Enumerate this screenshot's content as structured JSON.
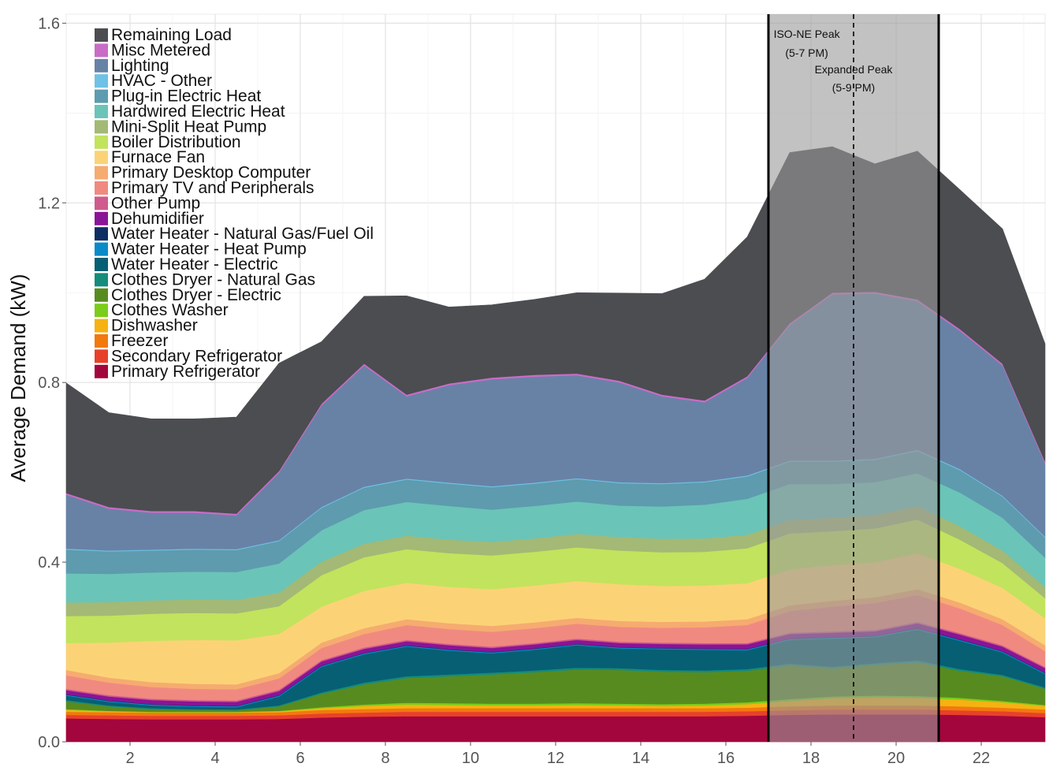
{
  "chart_data": {
    "type": "area",
    "stacked": true,
    "title": "",
    "xlabel": "",
    "ylabel": "Average Demand (kW)",
    "xlim": [
      0.5,
      23.5
    ],
    "ylim": [
      0,
      1.62
    ],
    "x_ticks": [
      2,
      4,
      6,
      8,
      10,
      12,
      14,
      16,
      18,
      20,
      22
    ],
    "x_tick_labels": [
      "2",
      "4",
      "6",
      "8",
      "10",
      "12",
      "14",
      "16",
      "18",
      "20",
      "22"
    ],
    "y_ticks": [
      0.0,
      0.4,
      0.8,
      1.2,
      1.6
    ],
    "y_tick_labels": [
      "0.0",
      "0.4",
      "0.8",
      "1.2",
      "1.6"
    ],
    "legend_position": "top-left",
    "x": [
      0.5,
      1.5,
      2.5,
      3.5,
      4.5,
      5.5,
      6.5,
      7.5,
      8.5,
      9.5,
      10.5,
      11.5,
      12.5,
      13.5,
      14.5,
      15.5,
      16.5,
      17.5,
      18.5,
      19.5,
      20.5,
      21.5,
      22.5,
      23.5
    ],
    "series": [
      {
        "name": "Primary Refrigerator",
        "color": "#a3063d",
        "values": [
          0.052,
          0.051,
          0.05,
          0.05,
          0.05,
          0.051,
          0.054,
          0.056,
          0.057,
          0.057,
          0.057,
          0.057,
          0.057,
          0.057,
          0.057,
          0.057,
          0.058,
          0.06,
          0.061,
          0.061,
          0.061,
          0.06,
          0.058,
          0.055
        ]
      },
      {
        "name": "Secondary Refrigerator",
        "color": "#e8412a",
        "values": [
          0.008,
          0.008,
          0.008,
          0.008,
          0.008,
          0.008,
          0.009,
          0.009,
          0.01,
          0.01,
          0.01,
          0.01,
          0.01,
          0.01,
          0.01,
          0.01,
          0.01,
          0.01,
          0.011,
          0.011,
          0.011,
          0.01,
          0.01,
          0.009
        ]
      },
      {
        "name": "Freezer",
        "color": "#f2790e",
        "values": [
          0.007,
          0.007,
          0.007,
          0.007,
          0.007,
          0.007,
          0.008,
          0.008,
          0.008,
          0.008,
          0.008,
          0.008,
          0.008,
          0.008,
          0.008,
          0.008,
          0.008,
          0.009,
          0.009,
          0.009,
          0.009,
          0.009,
          0.008,
          0.008
        ]
      },
      {
        "name": "Dishwasher",
        "color": "#f6b212",
        "values": [
          0.004,
          0.002,
          0.001,
          0.001,
          0.001,
          0.002,
          0.004,
          0.007,
          0.008,
          0.007,
          0.006,
          0.006,
          0.007,
          0.006,
          0.005,
          0.006,
          0.008,
          0.012,
          0.016,
          0.018,
          0.017,
          0.015,
          0.012,
          0.008
        ]
      },
      {
        "name": "Clothes Washer",
        "color": "#7ccd1a",
        "values": [
          0.002,
          0.001,
          0.001,
          0.001,
          0.001,
          0.001,
          0.002,
          0.003,
          0.004,
          0.004,
          0.004,
          0.004,
          0.004,
          0.004,
          0.004,
          0.004,
          0.004,
          0.004,
          0.004,
          0.004,
          0.004,
          0.004,
          0.003,
          0.002
        ]
      },
      {
        "name": "Clothes Dryer - Electric",
        "color": "#588b1f",
        "values": [
          0.017,
          0.01,
          0.006,
          0.004,
          0.003,
          0.01,
          0.03,
          0.045,
          0.055,
          0.06,
          0.065,
          0.07,
          0.075,
          0.075,
          0.072,
          0.07,
          0.07,
          0.075,
          0.062,
          0.068,
          0.075,
          0.06,
          0.055,
          0.036
        ]
      },
      {
        "name": "Clothes Dryer - Natural Gas",
        "color": "#158c7c",
        "values": [
          0.003,
          0.002,
          0.002,
          0.002,
          0.002,
          0.002,
          0.003,
          0.004,
          0.004,
          0.004,
          0.004,
          0.004,
          0.004,
          0.004,
          0.004,
          0.004,
          0.004,
          0.004,
          0.004,
          0.004,
          0.004,
          0.004,
          0.003,
          0.003
        ]
      },
      {
        "name": "Water Heater - Electric",
        "color": "#075f74",
        "values": [
          0.01,
          0.008,
          0.006,
          0.005,
          0.005,
          0.02,
          0.057,
          0.063,
          0.066,
          0.053,
          0.043,
          0.046,
          0.05,
          0.044,
          0.046,
          0.046,
          0.042,
          0.053,
          0.063,
          0.058,
          0.069,
          0.063,
          0.05,
          0.03
        ]
      },
      {
        "name": "Water Heater - Heat Pump",
        "color": "#0b8ac9",
        "values": [
          0.002,
          0.002,
          0.002,
          0.002,
          0.002,
          0.002,
          0.002,
          0.002,
          0.002,
          0.002,
          0.002,
          0.002,
          0.002,
          0.002,
          0.002,
          0.002,
          0.002,
          0.002,
          0.002,
          0.002,
          0.002,
          0.002,
          0.002,
          0.002
        ]
      },
      {
        "name": "Water Heater - Natural Gas/Fuel Oil",
        "color": "#0d2e63",
        "values": [
          0.001,
          0.001,
          0.001,
          0.001,
          0.001,
          0.001,
          0.001,
          0.001,
          0.001,
          0.001,
          0.001,
          0.001,
          0.001,
          0.001,
          0.001,
          0.001,
          0.001,
          0.001,
          0.001,
          0.001,
          0.001,
          0.001,
          0.001,
          0.001
        ]
      },
      {
        "name": "Dehumidifier",
        "color": "#8a1496",
        "values": [
          0.009,
          0.009,
          0.009,
          0.009,
          0.009,
          0.009,
          0.009,
          0.009,
          0.009,
          0.009,
          0.009,
          0.009,
          0.009,
          0.009,
          0.009,
          0.009,
          0.01,
          0.01,
          0.01,
          0.01,
          0.011,
          0.011,
          0.01,
          0.01
        ]
      },
      {
        "name": "Other Pump",
        "color": "#cf5b8d",
        "values": [
          0.003,
          0.003,
          0.003,
          0.003,
          0.003,
          0.003,
          0.003,
          0.003,
          0.003,
          0.003,
          0.003,
          0.003,
          0.003,
          0.003,
          0.003,
          0.003,
          0.003,
          0.003,
          0.003,
          0.003,
          0.003,
          0.003,
          0.003,
          0.003
        ]
      },
      {
        "name": "Primary TV and Peripherals",
        "color": "#f08a80",
        "values": [
          0.03,
          0.028,
          0.026,
          0.025,
          0.025,
          0.025,
          0.027,
          0.03,
          0.033,
          0.033,
          0.033,
          0.033,
          0.033,
          0.033,
          0.033,
          0.035,
          0.04,
          0.048,
          0.055,
          0.06,
          0.06,
          0.055,
          0.045,
          0.035
        ]
      },
      {
        "name": "Primary Desktop Computer",
        "color": "#f6ab70",
        "values": [
          0.012,
          0.011,
          0.011,
          0.011,
          0.011,
          0.012,
          0.012,
          0.013,
          0.013,
          0.013,
          0.013,
          0.013,
          0.013,
          0.013,
          0.013,
          0.013,
          0.013,
          0.013,
          0.013,
          0.013,
          0.013,
          0.013,
          0.013,
          0.013
        ]
      },
      {
        "name": "Furnace Fan",
        "color": "#fbd376",
        "values": [
          0.06,
          0.078,
          0.092,
          0.098,
          0.098,
          0.087,
          0.08,
          0.083,
          0.081,
          0.081,
          0.082,
          0.082,
          0.082,
          0.082,
          0.08,
          0.08,
          0.08,
          0.08,
          0.08,
          0.078,
          0.08,
          0.075,
          0.07,
          0.06
        ]
      },
      {
        "name": "Boiler Distribution",
        "color": "#c2e35d",
        "values": [
          0.06,
          0.06,
          0.06,
          0.06,
          0.06,
          0.062,
          0.07,
          0.075,
          0.075,
          0.075,
          0.075,
          0.075,
          0.075,
          0.075,
          0.075,
          0.075,
          0.078,
          0.08,
          0.075,
          0.075,
          0.075,
          0.065,
          0.055,
          0.045
        ]
      },
      {
        "name": "Mini-Split Heat Pump",
        "color": "#a3b975",
        "values": [
          0.03,
          0.03,
          0.03,
          0.03,
          0.03,
          0.03,
          0.03,
          0.03,
          0.03,
          0.03,
          0.03,
          0.03,
          0.03,
          0.03,
          0.03,
          0.03,
          0.03,
          0.03,
          0.03,
          0.03,
          0.03,
          0.03,
          0.028,
          0.025
        ]
      },
      {
        "name": "Hardwired Electric Heat",
        "color": "#6bc4b8",
        "values": [
          0.065,
          0.063,
          0.062,
          0.062,
          0.062,
          0.065,
          0.07,
          0.075,
          0.075,
          0.075,
          0.072,
          0.072,
          0.072,
          0.07,
          0.072,
          0.075,
          0.08,
          0.08,
          0.075,
          0.073,
          0.073,
          0.075,
          0.073,
          0.065
        ]
      },
      {
        "name": "Plug-in Electric Heat",
        "color": "#5e9bae",
        "values": [
          0.053,
          0.05,
          0.049,
          0.049,
          0.049,
          0.05,
          0.05,
          0.05,
          0.05,
          0.05,
          0.05,
          0.05,
          0.05,
          0.05,
          0.05,
          0.05,
          0.05,
          0.05,
          0.05,
          0.05,
          0.05,
          0.05,
          0.047,
          0.045
        ]
      },
      {
        "name": "HVAC - Other",
        "color": "#6fc1e5",
        "values": [
          0.002,
          0.002,
          0.002,
          0.002,
          0.002,
          0.002,
          0.002,
          0.002,
          0.002,
          0.002,
          0.002,
          0.002,
          0.002,
          0.002,
          0.002,
          0.002,
          0.002,
          0.002,
          0.002,
          0.002,
          0.002,
          0.002,
          0.002,
          0.002
        ]
      },
      {
        "name": "Lighting",
        "color": "#6882a6",
        "values": [
          0.12,
          0.093,
          0.082,
          0.08,
          0.075,
          0.15,
          0.226,
          0.27,
          0.183,
          0.217,
          0.238,
          0.236,
          0.229,
          0.222,
          0.193,
          0.176,
          0.217,
          0.302,
          0.37,
          0.368,
          0.331,
          0.308,
          0.29,
          0.163
        ]
      },
      {
        "name": "Misc Metered",
        "color": "#c86cc6",
        "values": [
          0.004,
          0.004,
          0.004,
          0.004,
          0.004,
          0.004,
          0.004,
          0.004,
          0.004,
          0.004,
          0.004,
          0.004,
          0.004,
          0.004,
          0.004,
          0.004,
          0.004,
          0.004,
          0.004,
          0.004,
          0.004,
          0.004,
          0.004,
          0.004
        ]
      },
      {
        "name": "Remaining Load",
        "color": "#4b4d50",
        "values": [
          0.245,
          0.21,
          0.205,
          0.205,
          0.215,
          0.24,
          0.138,
          0.15,
          0.22,
          0.17,
          0.162,
          0.168,
          0.18,
          0.195,
          0.225,
          0.27,
          0.31,
          0.38,
          0.325,
          0.285,
          0.33,
          0.31,
          0.3,
          0.262
        ]
      }
    ],
    "annotations": [
      {
        "lines": [
          "ISO-NE Peak",
          "(5-7 PM)"
        ],
        "x_range": [
          17,
          19
        ]
      },
      {
        "lines": [
          "Expanded Peak",
          "(5-9 PM)"
        ],
        "x_range": [
          17,
          21
        ]
      }
    ],
    "shaded_region": [
      17,
      21
    ],
    "solid_vlines": [
      17,
      21
    ],
    "dashed_vlines": [
      19
    ]
  }
}
